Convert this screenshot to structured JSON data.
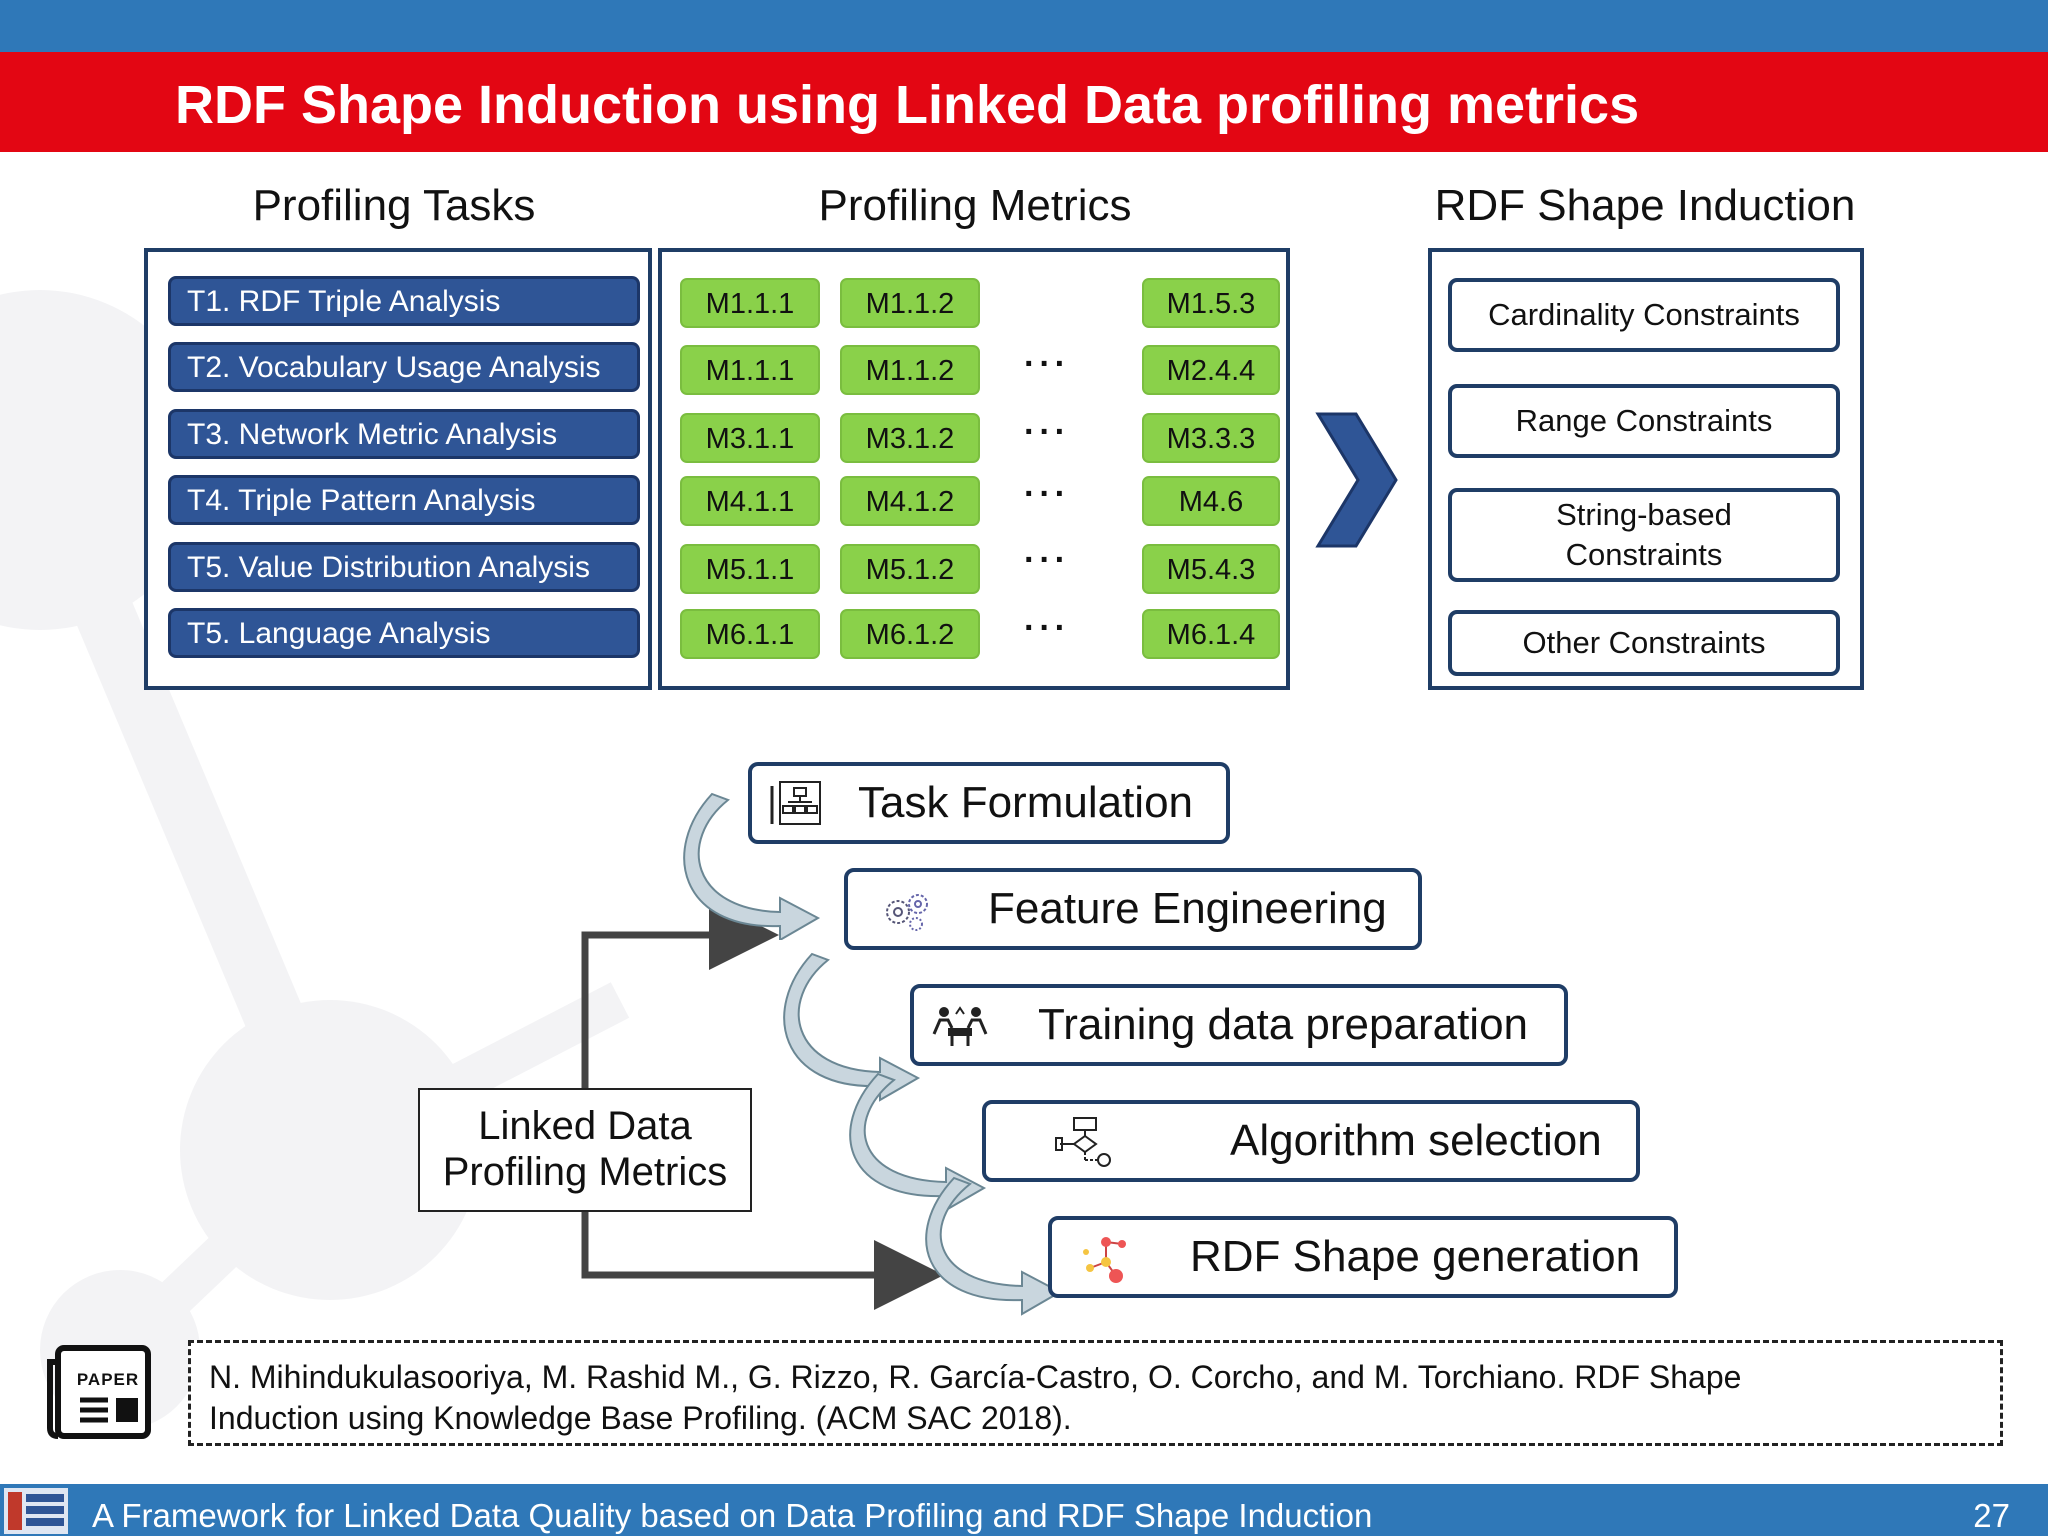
{
  "slide": {
    "title": "RDF Shape Induction using Linked Data profiling metrics",
    "page_number": "27"
  },
  "columns": {
    "tasks_header": "Profiling Tasks",
    "metrics_header": "Profiling Metrics",
    "induction_header": "RDF Shape Induction"
  },
  "tasks": [
    "T1. RDF Triple Analysis",
    "T2. Vocabulary Usage Analysis",
    "T3. Network Metric Analysis",
    "T4. Triple Pattern Analysis",
    "T5. Value Distribution Analysis",
    "T5. Language Analysis"
  ],
  "metrics": [
    {
      "a": "M1.1.1",
      "b": "M1.1.2",
      "dots": "",
      "last": "M1.5.3"
    },
    {
      "a": "M1.1.1",
      "b": "M1.1.2",
      "dots": "···",
      "last": "M2.4.4"
    },
    {
      "a": "M3.1.1",
      "b": "M3.1.2",
      "dots": "···",
      "last": "M3.3.3"
    },
    {
      "a": "M4.1.1",
      "b": "M4.1.2",
      "dots": "···",
      "last": "M4.6"
    },
    {
      "a": "M5.1.1",
      "b": "M5.1.2",
      "dots": "···",
      "last": "M5.4.3"
    },
    {
      "a": "M6.1.1",
      "b": "M6.1.2",
      "dots": "···",
      "last": "M6.1.4"
    }
  ],
  "constraints": [
    "Cardinality Constraints",
    "Range Constraints",
    "String-based Constraints",
    "Other Constraints"
  ],
  "workflow": {
    "steps": [
      {
        "label": "Task Formulation",
        "icon": "org-chart-icon"
      },
      {
        "label": "Feature Engineering",
        "icon": "gears-icon"
      },
      {
        "label": "Training data preparation",
        "icon": "meeting-icon"
      },
      {
        "label": "Algorithm selection",
        "icon": "flowchart-icon"
      },
      {
        "label": "RDF Shape generation",
        "icon": "network-icon"
      }
    ],
    "source_box": {
      "line1": "Linked Data",
      "line2": "Profiling Metrics"
    }
  },
  "reference": {
    "icon_label": "PAPER",
    "line1": "N. Mihindukulasooriya, M. Rashid M., G. Rizzo, R. García-Castro, O. Corcho, and M. Torchiano. RDF Shape",
    "line2": "Induction using Knowledge Base Profiling. (ACM SAC 2018)."
  },
  "footer": {
    "text": "A Framework for Linked Data Quality based on Data Profiling and RDF Shape Induction",
    "logo_icon": "group-logo-icon"
  },
  "colors": {
    "header_band": "#2f78b8",
    "title_band": "#e30613",
    "task_fill": "#2f5596",
    "metric_fill": "#8ad14a",
    "panel_border": "#1f3d66",
    "chevron": "#2f5596"
  }
}
